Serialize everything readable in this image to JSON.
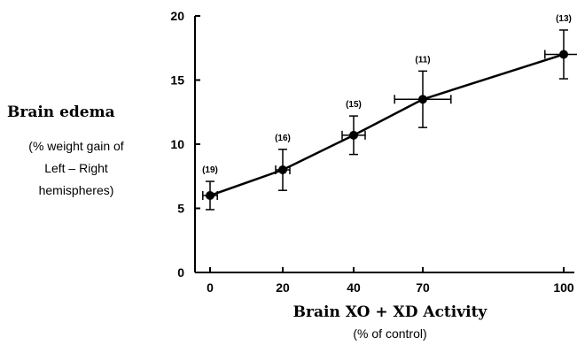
{
  "chart_data": {
    "type": "line",
    "ylabel": "Brain edema",
    "ylabel_sub": [
      "(% weight gain of",
      "Left  –  Right",
      "hemispheres)"
    ],
    "xlabel": "Brain XO + XD Activity",
    "xlabel_sub": "(% of control)",
    "x_ticks": [
      "0",
      "20",
      "40",
      "70",
      "100"
    ],
    "y_ticks": [
      "0",
      "5",
      "10",
      "15",
      "20"
    ],
    "ylim": [
      0,
      20
    ],
    "grid": false,
    "series": [
      {
        "points": [
          {
            "x": 0,
            "y": 6.0,
            "y_err": 1.1,
            "x_err": 2,
            "n_label": "(19)"
          },
          {
            "x": 20,
            "y": 8.0,
            "y_err": 1.6,
            "x_err": 2,
            "n_label": "(16)"
          },
          {
            "x": 40,
            "y": 10.7,
            "y_err": 1.5,
            "x_err": 5,
            "n_label": "(15)"
          },
          {
            "x": 70,
            "y": 13.5,
            "y_err": 2.2,
            "x_err": 6,
            "n_label": "(11)"
          },
          {
            "x": 100,
            "y": 17.0,
            "y_err": 1.9,
            "x_err": 4,
            "n_label": "(13)"
          }
        ]
      }
    ]
  }
}
